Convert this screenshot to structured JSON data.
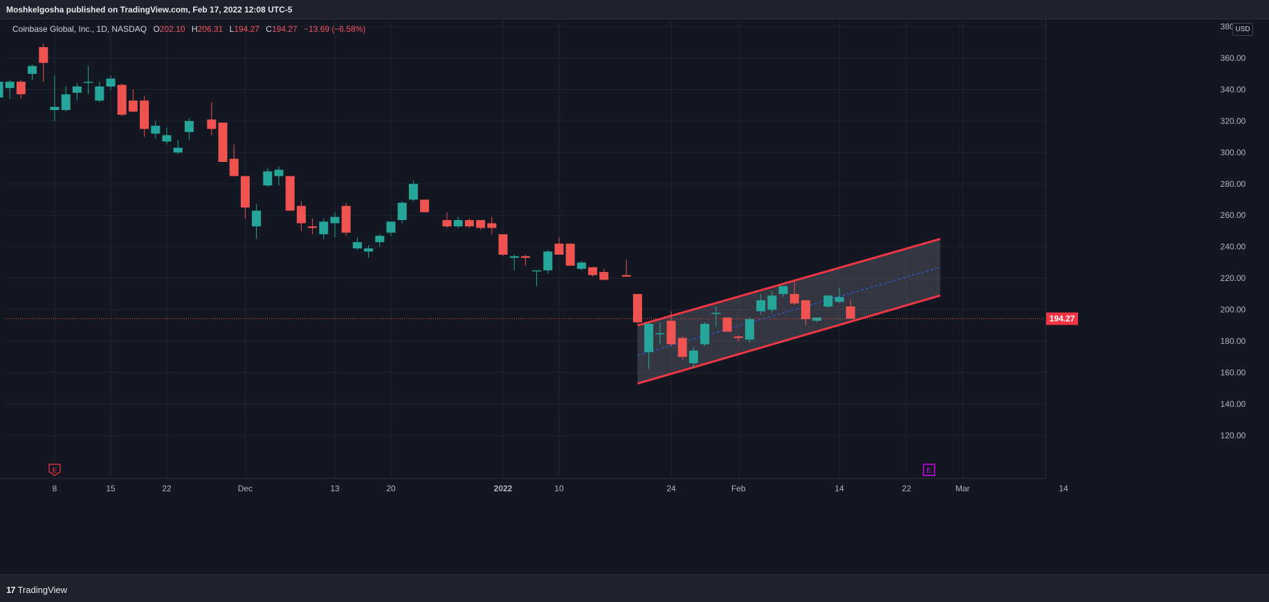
{
  "header": {
    "publisher_line": "Moshkelgosha published on TradingView.com, Feb 17, 2022 12:08 UTC-5"
  },
  "footer": {
    "logo_text": "TradingView",
    "logo_mark": "17"
  },
  "legend": {
    "symbol": "Coinbase Global, Inc., 1D, NASDAQ",
    "open_label": "O",
    "open": "202.10",
    "high_label": "H",
    "high": "206.31",
    "low_label": "L",
    "low": "194.27",
    "close_label": "C",
    "close": "194.27",
    "change": "−13.69 (−6.58%)"
  },
  "currency": "USD",
  "colors": {
    "up": "#26a69a",
    "down": "#ef5350",
    "channel": "#f23645",
    "channel_fill": "#5d606b",
    "midline": "#2962ff",
    "earnings_1": "#f23645",
    "earnings_2": "#d500f9"
  },
  "chart_data": {
    "type": "candlestick",
    "symbol": "COIN",
    "timeframe": "1D",
    "y_ticks": [
      "120.00",
      "140.00",
      "160.00",
      "180.00",
      "200.00",
      "220.00",
      "240.00",
      "260.00",
      "280.00",
      "300.00",
      "320.00",
      "340.00",
      "360.00",
      "380.00"
    ],
    "ylim": [
      105,
      398
    ],
    "last_price_label": "194.27",
    "last_price": 194.27,
    "x_ticks": [
      {
        "label": "8",
        "date": "2021-11-08"
      },
      {
        "label": "15",
        "date": "2021-11-15"
      },
      {
        "label": "22",
        "date": "2021-11-22"
      },
      {
        "label": "Dec",
        "date": "2021-12-01"
      },
      {
        "label": "13",
        "date": "2021-12-13"
      },
      {
        "label": "20",
        "date": "2021-12-20"
      },
      {
        "label": "2022",
        "date": "2022-01-03",
        "bold": true
      },
      {
        "label": "10",
        "date": "2022-01-10"
      },
      {
        "label": "24",
        "date": "2022-01-24"
      },
      {
        "label": "Feb",
        "date": "2022-02-01"
      },
      {
        "label": "14",
        "date": "2022-02-14"
      },
      {
        "label": "22",
        "date": "2022-02-22"
      },
      {
        "label": "Mar",
        "date": "2022-03-01"
      },
      {
        "label": "14",
        "date": "2022-03-14"
      }
    ],
    "candles": [
      {
        "d": "2021-11-01",
        "o": 335,
        "h": 345,
        "l": 329,
        "c": 345
      },
      {
        "d": "2021-11-02",
        "o": 341,
        "h": 346,
        "l": 334,
        "c": 345
      },
      {
        "d": "2021-11-03",
        "o": 345,
        "h": 346,
        "l": 334,
        "c": 337
      },
      {
        "d": "2021-11-04",
        "o": 350,
        "h": 356,
        "l": 346,
        "c": 355
      },
      {
        "d": "2021-11-05",
        "o": 367,
        "h": 369,
        "l": 345,
        "c": 357
      },
      {
        "d": "2021-11-08",
        "o": 327,
        "h": 349,
        "l": 320,
        "c": 329
      },
      {
        "d": "2021-11-09",
        "o": 327,
        "h": 342,
        "l": 326,
        "c": 337
      },
      {
        "d": "2021-11-10",
        "o": 338,
        "h": 344,
        "l": 333,
        "c": 342
      },
      {
        "d": "2021-11-11",
        "o": 345,
        "h": 355,
        "l": 337,
        "c": 345
      },
      {
        "d": "2021-11-12",
        "o": 333,
        "h": 345,
        "l": 332,
        "c": 342
      },
      {
        "d": "2021-11-15",
        "o": 342,
        "h": 349,
        "l": 340,
        "c": 347
      },
      {
        "d": "2021-11-16",
        "o": 343,
        "h": 344,
        "l": 323,
        "c": 324
      },
      {
        "d": "2021-11-17",
        "o": 333,
        "h": 340,
        "l": 326,
        "c": 326
      },
      {
        "d": "2021-11-18",
        "o": 333,
        "h": 336,
        "l": 310,
        "c": 315
      },
      {
        "d": "2021-11-19",
        "o": 312,
        "h": 320,
        "l": 309,
        "c": 317
      },
      {
        "d": "2021-11-22",
        "o": 307,
        "h": 316,
        "l": 305,
        "c": 311
      },
      {
        "d": "2021-11-23",
        "o": 300,
        "h": 308,
        "l": 299,
        "c": 303
      },
      {
        "d": "2021-11-24",
        "o": 313,
        "h": 322,
        "l": 308,
        "c": 320
      },
      {
        "d": "2021-11-26",
        "o": 321,
        "h": 332,
        "l": 311,
        "c": 315
      },
      {
        "d": "2021-11-29",
        "o": 319,
        "h": 319,
        "l": 294,
        "c": 294
      },
      {
        "d": "2021-11-30",
        "o": 296,
        "h": 305,
        "l": 285,
        "c": 285
      },
      {
        "d": "2021-12-01",
        "o": 285,
        "h": 285,
        "l": 258,
        "c": 265
      },
      {
        "d": "2021-12-02",
        "o": 253,
        "h": 267,
        "l": 245,
        "c": 263
      },
      {
        "d": "2021-12-03",
        "o": 279,
        "h": 290,
        "l": 278,
        "c": 288
      },
      {
        "d": "2021-12-06",
        "o": 285,
        "h": 291,
        "l": 279,
        "c": 289
      },
      {
        "d": "2021-12-07",
        "o": 285,
        "h": 285,
        "l": 263,
        "c": 263
      },
      {
        "d": "2021-12-08",
        "o": 266,
        "h": 269,
        "l": 250,
        "c": 255
      },
      {
        "d": "2021-12-09",
        "o": 253,
        "h": 258,
        "l": 248,
        "c": 252
      },
      {
        "d": "2021-12-10",
        "o": 248,
        "h": 258,
        "l": 245,
        "c": 256
      },
      {
        "d": "2021-12-13",
        "o": 255,
        "h": 262,
        "l": 246,
        "c": 259
      },
      {
        "d": "2021-12-14",
        "o": 266,
        "h": 268,
        "l": 247,
        "c": 249
      },
      {
        "d": "2021-12-15",
        "o": 239,
        "h": 246,
        "l": 238,
        "c": 243
      },
      {
        "d": "2021-12-16",
        "o": 237,
        "h": 241,
        "l": 233,
        "c": 239
      },
      {
        "d": "2021-12-17",
        "o": 243,
        "h": 248,
        "l": 240,
        "c": 247
      },
      {
        "d": "2021-12-20",
        "o": 249,
        "h": 256,
        "l": 247,
        "c": 256
      },
      {
        "d": "2021-12-21",
        "o": 257,
        "h": 269,
        "l": 255,
        "c": 268
      },
      {
        "d": "2021-12-22",
        "o": 270,
        "h": 282,
        "l": 269,
        "c": 280
      },
      {
        "d": "2021-12-23",
        "o": 270,
        "h": 270,
        "l": 262,
        "c": 262
      },
      {
        "d": "2021-12-27",
        "o": 257,
        "h": 262,
        "l": 252,
        "c": 253
      },
      {
        "d": "2021-12-28",
        "o": 253,
        "h": 259,
        "l": 252,
        "c": 257
      },
      {
        "d": "2021-12-29",
        "o": 257,
        "h": 258,
        "l": 252,
        "c": 253
      },
      {
        "d": "2021-12-30",
        "o": 257,
        "h": 257,
        "l": 251,
        "c": 252
      },
      {
        "d": "2021-12-31",
        "o": 255,
        "h": 259,
        "l": 248,
        "c": 252
      },
      {
        "d": "2022-01-03",
        "o": 248,
        "h": 248,
        "l": 234,
        "c": 235
      },
      {
        "d": "2022-01-04",
        "o": 233,
        "h": 235,
        "l": 225,
        "c": 234
      },
      {
        "d": "2022-01-05",
        "o": 234,
        "h": 235,
        "l": 228,
        "c": 233
      },
      {
        "d": "2022-01-06",
        "o": 225,
        "h": 225,
        "l": 215,
        "c": 225
      },
      {
        "d": "2022-01-07",
        "o": 225,
        "h": 238,
        "l": 223,
        "c": 237
      },
      {
        "d": "2022-01-10",
        "o": 242,
        "h": 246,
        "l": 235,
        "c": 235
      },
      {
        "d": "2022-01-11",
        "o": 242,
        "h": 242,
        "l": 228,
        "c": 228
      },
      {
        "d": "2022-01-12",
        "o": 226,
        "h": 231,
        "l": 225,
        "c": 230
      },
      {
        "d": "2022-01-13",
        "o": 227,
        "h": 227,
        "l": 221,
        "c": 222
      },
      {
        "d": "2022-01-14",
        "o": 224,
        "h": 226,
        "l": 219,
        "c": 219
      },
      {
        "d": "2022-01-18",
        "o": 222,
        "h": 232,
        "l": 221,
        "c": 221
      },
      {
        "d": "2022-01-19",
        "o": 210,
        "h": 210,
        "l": 191,
        "c": 192
      },
      {
        "d": "2022-01-20",
        "o": 173,
        "h": 192,
        "l": 162,
        "c": 191
      },
      {
        "d": "2022-01-21",
        "o": 185,
        "h": 192,
        "l": 178,
        "c": 185
      },
      {
        "d": "2022-01-24",
        "o": 193,
        "h": 199,
        "l": 177,
        "c": 178
      },
      {
        "d": "2022-01-25",
        "o": 182,
        "h": 183,
        "l": 168,
        "c": 170
      },
      {
        "d": "2022-01-26",
        "o": 166,
        "h": 176,
        "l": 163,
        "c": 174
      },
      {
        "d": "2022-01-27",
        "o": 178,
        "h": 192,
        "l": 177,
        "c": 191
      },
      {
        "d": "2022-01-28",
        "o": 198,
        "h": 202,
        "l": 189,
        "c": 198
      },
      {
        "d": "2022-01-31",
        "o": 195,
        "h": 195,
        "l": 186,
        "c": 186
      },
      {
        "d": "2022-02-01",
        "o": 183,
        "h": 184,
        "l": 180,
        "c": 182
      },
      {
        "d": "2022-02-02",
        "o": 181,
        "h": 195,
        "l": 179,
        "c": 194
      },
      {
        "d": "2022-02-03",
        "o": 199,
        "h": 210,
        "l": 197,
        "c": 206
      },
      {
        "d": "2022-02-04",
        "o": 200,
        "h": 212,
        "l": 198,
        "c": 209
      },
      {
        "d": "2022-02-07",
        "o": 210,
        "h": 215,
        "l": 208,
        "c": 215
      },
      {
        "d": "2022-02-08",
        "o": 210,
        "h": 218,
        "l": 203,
        "c": 204
      },
      {
        "d": "2022-02-09",
        "o": 206,
        "h": 206,
        "l": 190,
        "c": 194
      },
      {
        "d": "2022-02-10",
        "o": 193,
        "h": 195,
        "l": 192,
        "c": 195
      },
      {
        "d": "2022-02-11",
        "o": 202,
        "h": 209,
        "l": 201,
        "c": 209
      },
      {
        "d": "2022-02-14",
        "o": 205,
        "h": 214,
        "l": 204,
        "c": 208
      },
      {
        "d": "2022-02-15",
        "o": 202.1,
        "h": 206.31,
        "l": 194.27,
        "c": 194.27
      }
    ],
    "channel": {
      "upper": [
        {
          "d": "2022-01-19",
          "v": 190
        },
        {
          "d": "2022-02-25",
          "v": 245
        }
      ],
      "lower": [
        {
          "d": "2022-01-19",
          "v": 153
        },
        {
          "d": "2022-02-25",
          "v": 209
        }
      ],
      "middle": [
        {
          "d": "2022-01-19",
          "v": 171
        },
        {
          "d": "2022-02-25",
          "v": 227
        }
      ]
    },
    "events": [
      {
        "type": "earnings",
        "label": "E",
        "date": "2021-11-08"
      },
      {
        "type": "earnings",
        "label": "E",
        "date": "2022-02-24"
      }
    ]
  }
}
